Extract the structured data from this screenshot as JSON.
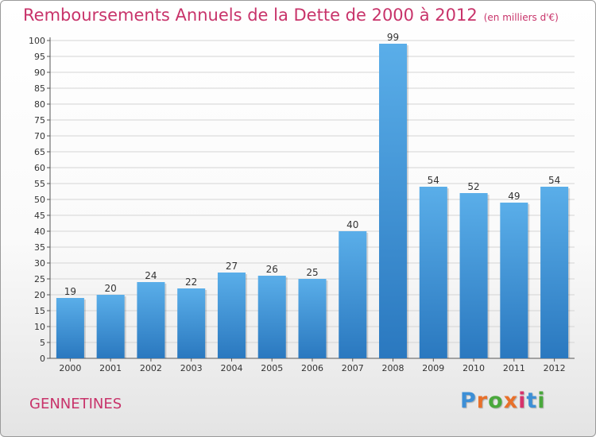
{
  "header": {
    "title": "Remboursements Annuels de la Dette de 2000 à 2012",
    "unit": "(en milliers d'€)"
  },
  "commune": "GENNETINES",
  "brand": {
    "logo_text": "Proxiti",
    "logo_colors": [
      "#3d8fd6",
      "#e8702a",
      "#4aa83c",
      "#e8702a",
      "#d6336c",
      "#3d8fd6",
      "#4aa83c"
    ]
  },
  "colors": {
    "bar_top": "#5aaee9",
    "bar_bottom": "#2a78bf",
    "accent": "#c8336a"
  },
  "chart_data": {
    "type": "bar",
    "title": "Remboursements Annuels de la Dette de 2000 à 2012",
    "categories": [
      "2000",
      "2001",
      "2002",
      "2003",
      "2004",
      "2005",
      "2006",
      "2007",
      "2008",
      "2009",
      "2010",
      "2011",
      "2012"
    ],
    "values": [
      19,
      20,
      24,
      22,
      27,
      26,
      25,
      40,
      99,
      54,
      52,
      49,
      54
    ],
    "ylim": [
      0,
      100
    ],
    "ytick_step": 5,
    "grid": true,
    "xlabel": "",
    "ylabel": ""
  }
}
